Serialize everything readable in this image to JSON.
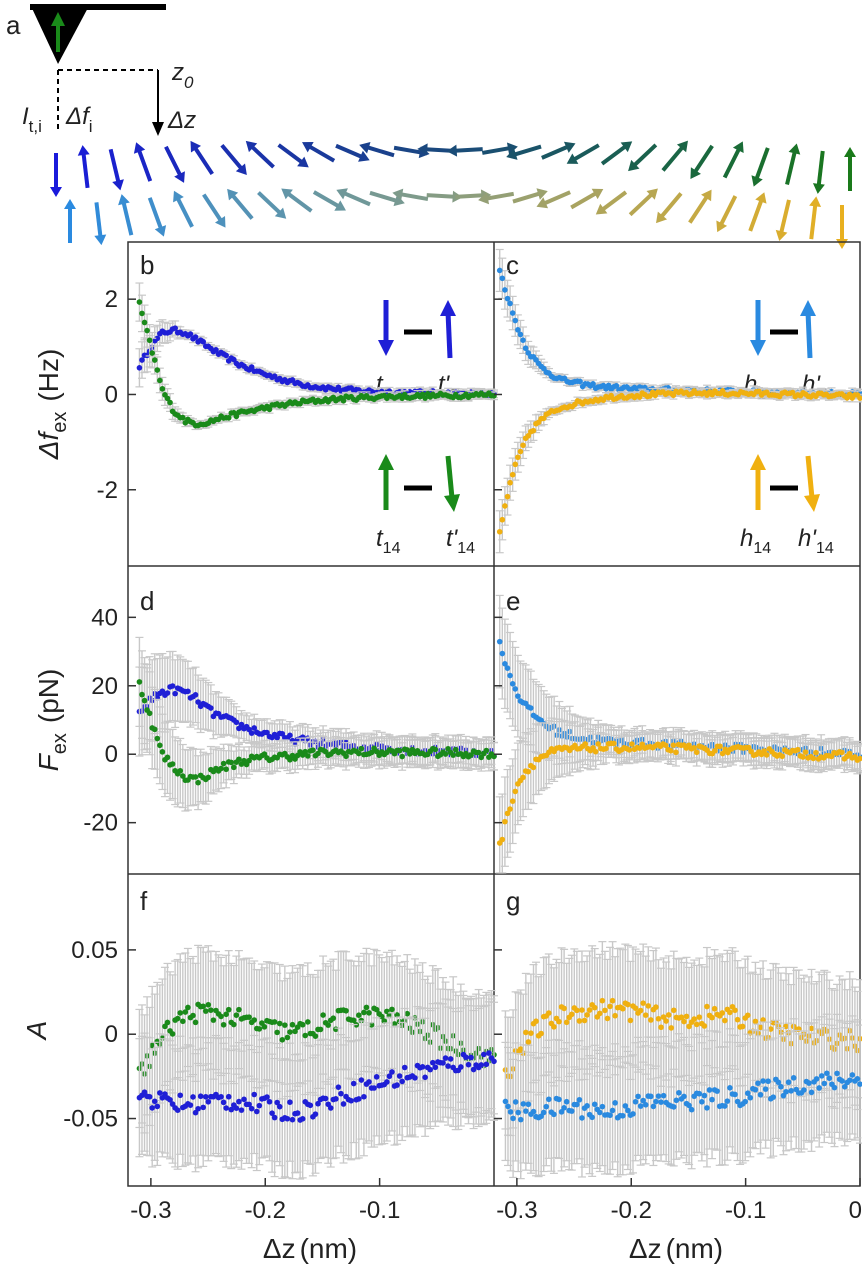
{
  "figure": {
    "panel_labels": [
      "a",
      "b",
      "c",
      "d",
      "e",
      "f",
      "g"
    ],
    "schematic": {
      "labels": {
        "current": "I",
        "current_sub": "t,i",
        "freq": "Δf",
        "freq_sub": "i",
        "z0": "z",
        "z0_sub": "0",
        "dz": "Δz"
      },
      "colors": {
        "tip": "#000000",
        "tip_spin": "#1a8a1a",
        "chain_top_start": "#1a1adb",
        "chain_top_end": "#1a7a1a",
        "chain_bottom_start": "#2a8ae0",
        "chain_bottom_end": "#e8b020"
      }
    },
    "legend_b": {
      "left": "t",
      "left_sub": "1",
      "right": "t'",
      "right_sub": "1",
      "left2": "t",
      "left2_sub": "14",
      "right2": "t'",
      "right2_sub": "14"
    },
    "legend_c": {
      "left": "h",
      "left_sub": "1",
      "right": "h'",
      "right_sub": "1",
      "left2": "h",
      "left2_sub": "14",
      "right2": "h'",
      "right2_sub": "14"
    }
  },
  "chart_data": [
    {
      "panel": "b",
      "type": "scatter",
      "ylabel": "Δf",
      "ylabel_sub": "ex",
      "ylabel_unit": "(Hz)",
      "xlim": [
        -0.32,
        0
      ],
      "ylim": [
        -3.6,
        3.2
      ],
      "yticks": [
        "2",
        "0",
        "-2"
      ],
      "yticks_values": [
        2,
        0,
        -2
      ],
      "series": [
        {
          "color": "#1f1fd6",
          "x": [
            -0.31,
            -0.3,
            -0.29,
            -0.28,
            -0.27,
            -0.26,
            -0.25,
            -0.24,
            -0.22,
            -0.2,
            -0.18,
            -0.16,
            -0.14,
            -0.12,
            -0.1,
            -0.08,
            -0.06,
            -0.04,
            -0.02,
            0.0
          ],
          "y": [
            0.6,
            1.0,
            1.3,
            1.35,
            1.3,
            1.15,
            1.0,
            0.85,
            0.6,
            0.42,
            0.28,
            0.18,
            0.12,
            0.08,
            0.05,
            0.04,
            0.03,
            0.02,
            0.01,
            0.0
          ]
        },
        {
          "color": "#1a8a1a",
          "x": [
            -0.31,
            -0.3,
            -0.29,
            -0.28,
            -0.27,
            -0.26,
            -0.25,
            -0.24,
            -0.22,
            -0.2,
            -0.18,
            -0.16,
            -0.14,
            -0.12,
            -0.1,
            -0.08,
            -0.06,
            -0.04,
            -0.02,
            0.0
          ],
          "y": [
            1.9,
            1.0,
            0.1,
            -0.35,
            -0.55,
            -0.62,
            -0.58,
            -0.5,
            -0.38,
            -0.28,
            -0.2,
            -0.14,
            -0.1,
            -0.07,
            -0.05,
            -0.04,
            -0.03,
            -0.02,
            -0.01,
            0.0
          ]
        }
      ]
    },
    {
      "panel": "c",
      "type": "scatter",
      "xlim": [
        -0.32,
        0
      ],
      "ylim": [
        -3.6,
        3.2
      ],
      "series": [
        {
          "color": "#2a8ae0",
          "x": [
            -0.315,
            -0.31,
            -0.305,
            -0.3,
            -0.295,
            -0.29,
            -0.28,
            -0.27,
            -0.26,
            -0.24,
            -0.22,
            -0.2,
            -0.18,
            -0.15,
            -0.12,
            -0.09,
            -0.06,
            -0.03,
            0.0
          ],
          "y": [
            2.6,
            2.2,
            1.8,
            1.45,
            1.15,
            0.9,
            0.6,
            0.42,
            0.3,
            0.2,
            0.15,
            0.12,
            0.1,
            0.08,
            0.06,
            0.05,
            0.03,
            0.02,
            0.0
          ]
        },
        {
          "color": "#f0b010",
          "x": [
            -0.315,
            -0.31,
            -0.305,
            -0.3,
            -0.295,
            -0.29,
            -0.28,
            -0.27,
            -0.26,
            -0.24,
            -0.22,
            -0.2,
            -0.18,
            -0.15,
            -0.12,
            -0.09,
            -0.06,
            -0.03,
            0.0
          ],
          "y": [
            -2.9,
            -2.3,
            -1.8,
            -1.4,
            -1.1,
            -0.85,
            -0.55,
            -0.38,
            -0.26,
            -0.14,
            -0.06,
            -0.02,
            0.0,
            0.03,
            0.03,
            0.02,
            0.0,
            -0.02,
            -0.05
          ]
        }
      ]
    },
    {
      "panel": "d",
      "type": "scatter",
      "ylabel": "F",
      "ylabel_sub": "ex",
      "ylabel_unit": "(pN)",
      "xlim": [
        -0.32,
        0
      ],
      "ylim": [
        -35,
        55
      ],
      "yticks": [
        "40",
        "20",
        "0",
        "-20"
      ],
      "yticks_values": [
        40,
        20,
        0,
        -20
      ],
      "series": [
        {
          "color": "#1f1fd6",
          "x": [
            -0.31,
            -0.3,
            -0.29,
            -0.28,
            -0.27,
            -0.26,
            -0.25,
            -0.24,
            -0.22,
            -0.2,
            -0.18,
            -0.16,
            -0.14,
            -0.12,
            -0.1,
            -0.08,
            -0.06,
            -0.04,
            -0.02,
            0.0
          ],
          "y": [
            12,
            16,
            18,
            19,
            18,
            16,
            13,
            11,
            8,
            6,
            4.5,
            3.5,
            2.8,
            2.2,
            1.8,
            1.4,
            1.0,
            0.8,
            0.5,
            0.3
          ]
        },
        {
          "color": "#1a8a1a",
          "x": [
            -0.31,
            -0.3,
            -0.29,
            -0.28,
            -0.27,
            -0.26,
            -0.25,
            -0.24,
            -0.22,
            -0.2,
            -0.18,
            -0.16,
            -0.14,
            -0.12,
            -0.1,
            -0.08,
            -0.06,
            -0.04,
            -0.02,
            0.0
          ],
          "y": [
            21,
            10,
            0,
            -4,
            -6.5,
            -7.5,
            -6,
            -4,
            -2,
            -1,
            -0.5,
            0.2,
            0.5,
            0.6,
            0.6,
            0.5,
            0.5,
            0.4,
            0.3,
            0.2
          ]
        }
      ]
    },
    {
      "panel": "e",
      "type": "scatter",
      "xlim": [
        -0.32,
        0
      ],
      "ylim": [
        -35,
        55
      ],
      "series": [
        {
          "color": "#2a8ae0",
          "x": [
            -0.315,
            -0.31,
            -0.305,
            -0.3,
            -0.29,
            -0.28,
            -0.27,
            -0.26,
            -0.24,
            -0.22,
            -0.2,
            -0.18,
            -0.15,
            -0.12,
            -0.09,
            -0.06,
            -0.03,
            0.0
          ],
          "y": [
            32,
            27,
            22,
            18,
            13,
            10,
            7.5,
            6,
            4.5,
            3.8,
            3.3,
            3.0,
            2.5,
            2.0,
            1.5,
            1.0,
            0.5,
            0.0
          ]
        },
        {
          "color": "#f0b010",
          "x": [
            -0.315,
            -0.31,
            -0.305,
            -0.3,
            -0.29,
            -0.28,
            -0.27,
            -0.26,
            -0.24,
            -0.22,
            -0.2,
            -0.18,
            -0.15,
            -0.12,
            -0.09,
            -0.06,
            -0.03,
            0.0
          ],
          "y": [
            -27,
            -20,
            -14,
            -9,
            -4,
            -1,
            0.5,
            1.2,
            1.8,
            2.0,
            2.0,
            1.9,
            1.6,
            1.2,
            0.8,
            0.3,
            -0.3,
            -0.8
          ]
        }
      ]
    },
    {
      "panel": "f",
      "type": "scatter",
      "ylabel": "A",
      "xlim": [
        -0.32,
        0
      ],
      "ylim": [
        -0.09,
        0.095
      ],
      "yticks": [
        "0.05",
        "0",
        "-0.05"
      ],
      "yticks_values": [
        0.05,
        0,
        -0.05
      ],
      "xticks": [
        "-0.3",
        "-0.2",
        "-0.1"
      ],
      "xticks_values": [
        -0.3,
        -0.2,
        -0.1
      ],
      "xlabel": "Δz",
      "xlabel_unit": "(nm)",
      "series": [
        {
          "color": "#1a8a1a",
          "x": [
            -0.31,
            -0.3,
            -0.29,
            -0.28,
            -0.27,
            -0.26,
            -0.25,
            -0.24,
            -0.22,
            -0.2,
            -0.18,
            -0.16,
            -0.14,
            -0.12,
            -0.1,
            -0.08,
            -0.06,
            -0.04,
            -0.02,
            0.0
          ],
          "y": [
            -0.025,
            -0.012,
            -0.002,
            0.006,
            0.011,
            0.013,
            0.013,
            0.012,
            0.008,
            0.004,
            0.001,
            0.003,
            0.008,
            0.011,
            0.011,
            0.008,
            0.002,
            -0.005,
            -0.01,
            -0.015
          ]
        },
        {
          "color": "#1f1fd6",
          "x": [
            -0.31,
            -0.3,
            -0.29,
            -0.28,
            -0.27,
            -0.26,
            -0.25,
            -0.24,
            -0.22,
            -0.2,
            -0.18,
            -0.16,
            -0.14,
            -0.12,
            -0.1,
            -0.08,
            -0.06,
            -0.04,
            -0.02,
            0.0
          ],
          "y": [
            -0.035,
            -0.038,
            -0.04,
            -0.041,
            -0.042,
            -0.041,
            -0.04,
            -0.039,
            -0.04,
            -0.043,
            -0.046,
            -0.044,
            -0.038,
            -0.033,
            -0.029,
            -0.025,
            -0.021,
            -0.018,
            -0.016,
            -0.014
          ]
        }
      ]
    },
    {
      "panel": "g",
      "type": "scatter",
      "xlim": [
        -0.32,
        0
      ],
      "ylim": [
        -0.09,
        0.095
      ],
      "xticks": [
        "-0.3",
        "-0.2",
        "-0.1",
        "0"
      ],
      "xticks_values": [
        -0.3,
        -0.2,
        -0.1,
        0
      ],
      "xlabel": "Δz",
      "xlabel_unit": "(nm)",
      "series": [
        {
          "color": "#f0b010",
          "x": [
            -0.31,
            -0.3,
            -0.29,
            -0.28,
            -0.27,
            -0.26,
            -0.25,
            -0.24,
            -0.22,
            -0.2,
            -0.18,
            -0.16,
            -0.14,
            -0.12,
            -0.1,
            -0.08,
            -0.06,
            -0.04,
            -0.02,
            0.0
          ],
          "y": [
            -0.025,
            -0.012,
            -0.002,
            0.004,
            0.008,
            0.011,
            0.013,
            0.014,
            0.015,
            0.014,
            0.011,
            0.008,
            0.01,
            0.012,
            0.008,
            0.002,
            0.0,
            -0.002,
            -0.003,
            -0.004
          ]
        },
        {
          "color": "#2a8ae0",
          "x": [
            -0.31,
            -0.3,
            -0.29,
            -0.28,
            -0.27,
            -0.26,
            -0.25,
            -0.24,
            -0.22,
            -0.2,
            -0.18,
            -0.16,
            -0.14,
            -0.12,
            -0.1,
            -0.08,
            -0.06,
            -0.04,
            -0.02,
            0.0
          ],
          "y": [
            -0.045,
            -0.046,
            -0.046,
            -0.045,
            -0.044,
            -0.043,
            -0.043,
            -0.044,
            -0.046,
            -0.043,
            -0.04,
            -0.04,
            -0.039,
            -0.038,
            -0.036,
            -0.033,
            -0.03,
            -0.029,
            -0.028,
            -0.026
          ]
        }
      ]
    }
  ]
}
